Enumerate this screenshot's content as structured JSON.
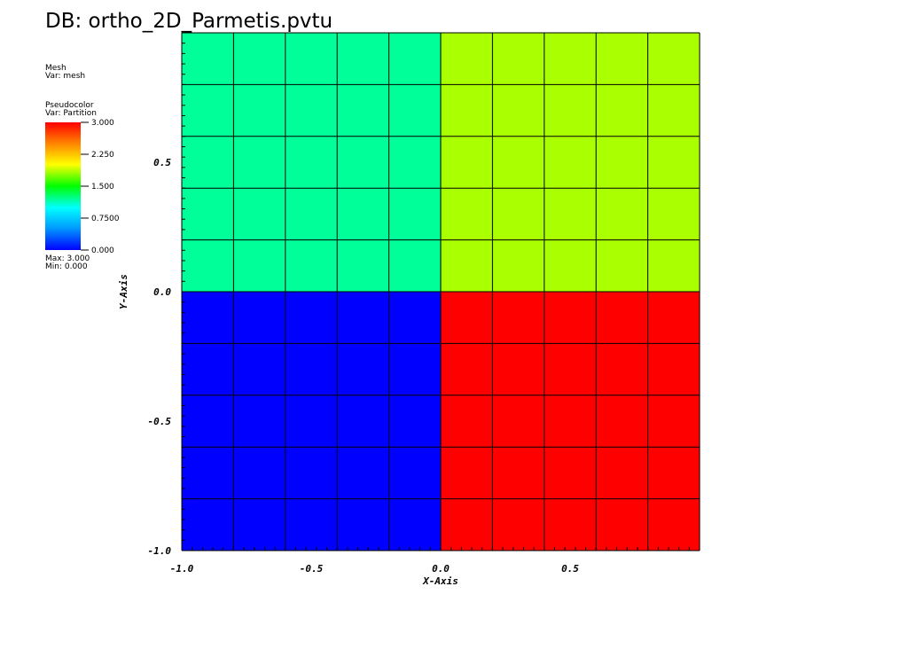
{
  "title": "DB: ortho_2D_Parmetis.pvtu",
  "legend": {
    "mesh_heading": "Mesh",
    "mesh_var": "Var: mesh",
    "pseudo_heading": "Pseudocolor",
    "pseudo_var": "Var: Partition",
    "colorbar_labels": [
      "3.000",
      "2.250",
      "1.500",
      "0.7500",
      "0.000"
    ],
    "max_label": "Max:  3.000",
    "min_label": "Min:  0.000"
  },
  "chart_data": {
    "type": "heatmap",
    "xlabel": "X-Axis",
    "ylabel": "Y-Axis",
    "xlim": [
      -1.0,
      1.0
    ],
    "ylim": [
      -1.0,
      1.0
    ],
    "x_ticks": [
      "-1.0",
      "-0.5",
      "0.0",
      "0.5"
    ],
    "x_tick_values": [
      -1.0,
      -0.5,
      0.0,
      0.5
    ],
    "y_ticks": [
      "0.5",
      "0.0",
      "-0.5",
      "-1.0"
    ],
    "y_tick_values": [
      0.5,
      0.0,
      -0.5,
      -1.0
    ],
    "mesh_divisions": [
      10,
      10
    ],
    "partitions": [
      {
        "x": [
          -1.0,
          0.0
        ],
        "y": [
          0.0,
          1.0
        ],
        "value": 1,
        "color": "#00ff99"
      },
      {
        "x": [
          0.0,
          1.0
        ],
        "y": [
          0.0,
          1.0
        ],
        "value": 2,
        "color": "#aaff00"
      },
      {
        "x": [
          -1.0,
          0.0
        ],
        "y": [
          -1.0,
          0.0
        ],
        "value": 0,
        "color": "#0000ff"
      },
      {
        "x": [
          0.0,
          1.0
        ],
        "y": [
          -1.0,
          0.0
        ],
        "value": 3,
        "color": "#ff0000"
      }
    ],
    "colorbar_range": [
      0,
      3
    ]
  }
}
